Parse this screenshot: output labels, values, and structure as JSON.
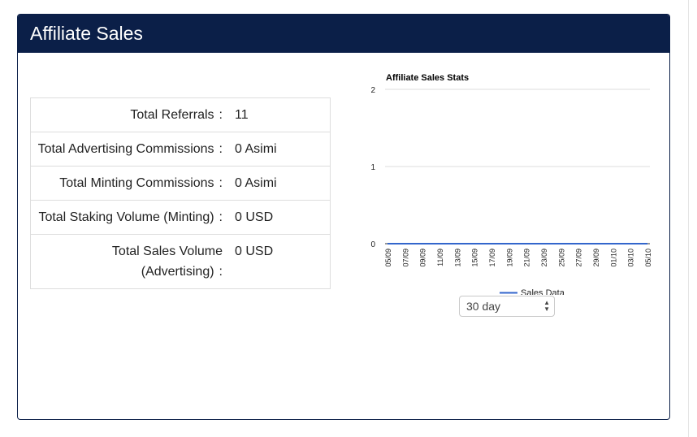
{
  "panel": {
    "title": "Affiliate Sales"
  },
  "stats": [
    {
      "label": "Total Referrals",
      "colon": ":",
      "value": "11"
    },
    {
      "label": "Total Advertising Commissions",
      "colon": ":",
      "value": "0 Asimi"
    },
    {
      "label": "Total Minting Commissions",
      "colon": ":",
      "value": "0 Asimi"
    },
    {
      "label": "Total Staking Volume (Minting)",
      "colon": ":",
      "value": "0 USD"
    },
    {
      "label": "Total Sales Volume (Advertising)",
      "colon": ":",
      "value": "0 USD"
    }
  ],
  "chart_data": {
    "type": "line",
    "title": "Affiliate Sales Stats",
    "x_tick_labels": [
      "05/09",
      "07/09",
      "09/09",
      "11/09",
      "13/09",
      "15/09",
      "17/09",
      "19/09",
      "21/09",
      "23/09",
      "25/09",
      "27/09",
      "29/09",
      "01/10",
      "03/10",
      "05/10"
    ],
    "y_ticks": [
      "0",
      "1",
      "2"
    ],
    "ylim": [
      0,
      2
    ],
    "grid": true,
    "legend_position": "bottom",
    "series": [
      {
        "name": "Sales Data",
        "color": "#3366cc",
        "x": [
          "05/09",
          "06/09",
          "07/09",
          "08/09",
          "09/09",
          "10/09",
          "11/09",
          "12/09",
          "13/09",
          "14/09",
          "15/09",
          "16/09",
          "17/09",
          "18/09",
          "19/09",
          "20/09",
          "21/09",
          "22/09",
          "23/09",
          "24/09",
          "25/09",
          "26/09",
          "27/09",
          "28/09",
          "29/09",
          "30/09",
          "01/10",
          "02/10",
          "03/10",
          "04/10",
          "05/10"
        ],
        "values": [
          0,
          0,
          0,
          0,
          0,
          0,
          0,
          0,
          0,
          0,
          0,
          0,
          0,
          0,
          0,
          0,
          0,
          0,
          0,
          0,
          0,
          0,
          0,
          0,
          0,
          0,
          0,
          0,
          0,
          0,
          0
        ]
      }
    ]
  },
  "range_select": {
    "value": "30 day"
  },
  "colors": {
    "header": "#0b1f48",
    "series": "#3366cc"
  }
}
